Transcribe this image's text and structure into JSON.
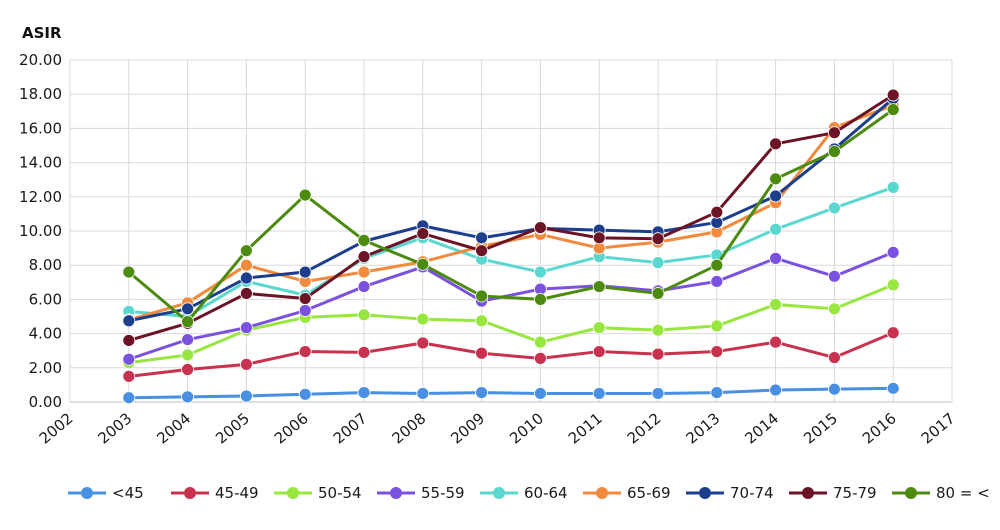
{
  "chart_data": {
    "type": "line",
    "ylabel": "ASIR",
    "xlabel": "",
    "title": "",
    "x_ticks": [
      "2002",
      "2003",
      "2004",
      "2005",
      "2006",
      "2007",
      "2008",
      "2009",
      "2010",
      "2011",
      "2012",
      "2013",
      "2014",
      "2015",
      "2016",
      "2017"
    ],
    "x": [
      "2003",
      "2004",
      "2005",
      "2006",
      "2007",
      "2008",
      "2009",
      "2010",
      "2011",
      "2012",
      "2013",
      "2014",
      "2015",
      "2016"
    ],
    "xlim": [
      2002,
      2017
    ],
    "ylim": [
      0,
      20
    ],
    "y_ticks": [
      "0.00",
      "2.00",
      "4.00",
      "6.00",
      "8.00",
      "10.00",
      "12.00",
      "14.00",
      "16.00",
      "18.00",
      "20.00"
    ],
    "grid": "both",
    "legend_position": "bottom",
    "series": [
      {
        "name": "<45",
        "color": "#4a90e2",
        "values": [
          0.25,
          0.3,
          0.35,
          0.45,
          0.55,
          0.5,
          0.55,
          0.5,
          0.5,
          0.5,
          0.55,
          0.7,
          0.75,
          0.8
        ]
      },
      {
        "name": "45-49",
        "color": "#c8324e",
        "values": [
          1.5,
          1.9,
          2.2,
          2.95,
          2.9,
          3.45,
          2.85,
          2.55,
          2.95,
          2.8,
          2.95,
          3.5,
          2.6,
          4.05
        ]
      },
      {
        "name": "50-54",
        "color": "#98e640",
        "values": [
          2.3,
          2.75,
          4.2,
          4.95,
          5.1,
          4.85,
          4.75,
          3.5,
          4.35,
          4.2,
          4.45,
          5.7,
          5.45,
          6.85
        ]
      },
      {
        "name": "55-59",
        "color": "#7b52e0",
        "values": [
          2.5,
          3.65,
          4.35,
          5.35,
          6.75,
          7.9,
          5.9,
          6.6,
          6.8,
          6.5,
          7.05,
          8.4,
          7.35,
          8.75
        ]
      },
      {
        "name": "60-64",
        "color": "#5ad8d0",
        "values": [
          5.3,
          5.0,
          7.05,
          6.25,
          8.4,
          9.6,
          8.35,
          7.6,
          8.5,
          8.15,
          8.6,
          10.1,
          11.35,
          12.55
        ]
      },
      {
        "name": "65-69",
        "color": "#f08a3c",
        "values": [
          4.8,
          5.8,
          8.0,
          7.05,
          7.6,
          8.2,
          9.1,
          9.8,
          9.0,
          9.35,
          9.95,
          11.65,
          16.05,
          17.35
        ]
      },
      {
        "name": "70-74",
        "color": "#1c3e8c",
        "values": [
          4.75,
          5.45,
          7.25,
          7.6,
          9.4,
          10.3,
          9.6,
          10.15,
          10.05,
          9.95,
          10.5,
          12.05,
          14.8,
          17.75
        ]
      },
      {
        "name": "75-79",
        "color": "#6b1426",
        "values": [
          3.6,
          4.6,
          6.35,
          6.05,
          8.5,
          9.85,
          8.85,
          10.2,
          9.6,
          9.55,
          11.1,
          15.1,
          15.75,
          17.95
        ]
      },
      {
        "name": "80 = <",
        "color": "#4c8a10",
        "values": [
          7.6,
          4.7,
          8.85,
          12.1,
          9.45,
          8.05,
          6.2,
          6.0,
          6.75,
          6.35,
          8.0,
          13.05,
          14.65,
          17.1
        ]
      }
    ]
  }
}
